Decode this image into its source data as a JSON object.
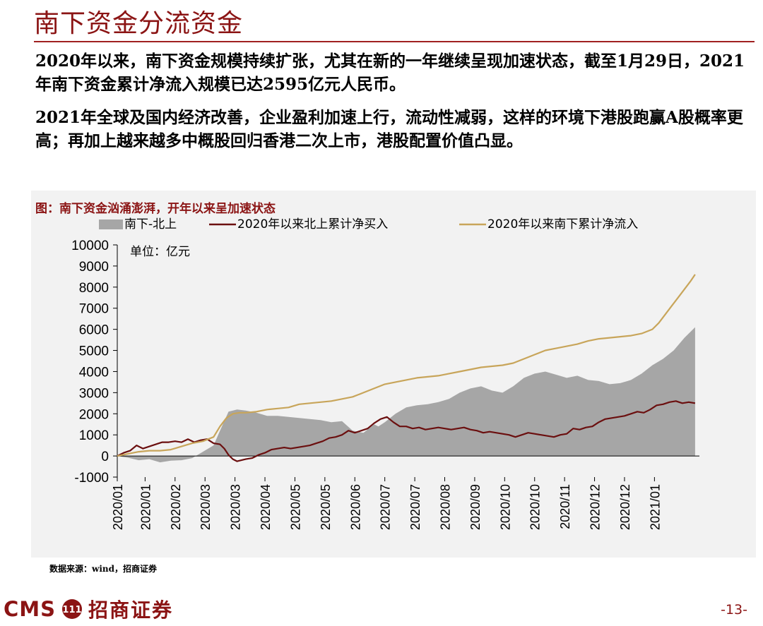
{
  "page": {
    "title": "南下资金分流资金",
    "paragraphs": [
      "2020年以来，南下资金规模持续扩张，尤其在新的一年继续呈现加速状态，截至1月29日，2021年南下资金累计净流入规模已达2595亿元人民币。",
      "2021年全球及国内经济改善，企业盈利加速上行，流动性减弱，这样的环境下港股跑赢A股概率更高；再加上越来越多中概股回归香港二次上市，港股配置价值凸显。"
    ],
    "source": "数据来源：wind，招商证券",
    "footer": {
      "brand": "CMS",
      "logo_text": "111",
      "company": "招商证券",
      "page_number": "-13-"
    }
  },
  "colors": {
    "title": "#8b1414",
    "area": "#a6a6a6",
    "north_line": "#6b0f0f",
    "south_line": "#c8a55a",
    "chart_bg": "#f2f2f2"
  },
  "chart_data": {
    "type": "line",
    "title": "图：南下资金汹涌澎湃，开年以来呈加速状态",
    "unit_label": "单位：亿元",
    "ylim": [
      -1000,
      10000
    ],
    "yticks": [
      10000,
      9000,
      8000,
      7000,
      6000,
      5000,
      4000,
      3000,
      2000,
      1000,
      0,
      -1000
    ],
    "xlim": [
      0,
      272
    ],
    "xtick_positions": [
      0,
      13,
      27,
      41,
      55,
      69,
      83,
      97,
      111,
      125,
      139,
      153,
      167,
      181,
      195,
      209,
      223,
      237,
      251
    ],
    "xtick_labels": [
      "2020/01",
      "2020/01",
      "2020/02",
      "2020/03",
      "2020/03",
      "2020/04",
      "2020/05",
      "2020/05",
      "2020/06",
      "2020/07",
      "2020/07",
      "2020/08",
      "2020/09",
      "2020/10",
      "2020/10",
      "2020/11",
      "2020/12",
      "2020/12",
      "2021/01"
    ],
    "series": [
      {
        "name": "南下-北上",
        "type": "area",
        "x": [
          0,
          5,
          10,
          15,
          20,
          25,
          30,
          35,
          40,
          45,
          48,
          52,
          56,
          60,
          65,
          70,
          75,
          80,
          85,
          90,
          95,
          100,
          105,
          110,
          115,
          120,
          122,
          125,
          130,
          135,
          140,
          145,
          150,
          155,
          160,
          165,
          170,
          175,
          180,
          185,
          190,
          195,
          200,
          205,
          210,
          215,
          220,
          225,
          230,
          235,
          240,
          245,
          250,
          255,
          260,
          265,
          268,
          270
        ],
        "values": [
          0,
          -80,
          -200,
          -150,
          -300,
          -220,
          -200,
          -100,
          200,
          500,
          1200,
          2100,
          2200,
          2150,
          2050,
          1900,
          1900,
          1850,
          1800,
          1750,
          1700,
          1600,
          1650,
          1200,
          1100,
          1500,
          1400,
          1600,
          2000,
          2300,
          2400,
          2450,
          2550,
          2700,
          3000,
          3200,
          3300,
          3100,
          3000,
          3300,
          3700,
          3900,
          4000,
          3850,
          3700,
          3800,
          3600,
          3550,
          3400,
          3450,
          3600,
          3900,
          4300,
          4600,
          5000,
          5600,
          5900,
          6100
        ]
      },
      {
        "name": "2020年以来北上累计净买入",
        "type": "line",
        "x": [
          0,
          3,
          6,
          9,
          12,
          15,
          18,
          21,
          24,
          27,
          30,
          33,
          36,
          39,
          42,
          45,
          48,
          50,
          52,
          54,
          56,
          58,
          60,
          63,
          66,
          69,
          72,
          75,
          78,
          81,
          84,
          87,
          90,
          93,
          96,
          99,
          102,
          105,
          108,
          111,
          114,
          117,
          120,
          123,
          126,
          129,
          132,
          135,
          138,
          141,
          144,
          147,
          150,
          153,
          156,
          159,
          162,
          165,
          168,
          171,
          174,
          177,
          180,
          183,
          186,
          189,
          192,
          195,
          198,
          201,
          204,
          207,
          210,
          213,
          216,
          219,
          222,
          225,
          228,
          231,
          234,
          237,
          240,
          243,
          246,
          249,
          252,
          255,
          258,
          261,
          264,
          267,
          270
        ],
        "values": [
          0,
          150,
          250,
          500,
          350,
          450,
          550,
          650,
          650,
          700,
          650,
          800,
          650,
          750,
          800,
          600,
          550,
          350,
          50,
          -150,
          -250,
          -200,
          -150,
          -100,
          50,
          150,
          300,
          350,
          400,
          350,
          400,
          450,
          500,
          600,
          700,
          850,
          900,
          1000,
          1200,
          1100,
          1200,
          1300,
          1550,
          1750,
          1850,
          1600,
          1400,
          1400,
          1300,
          1350,
          1250,
          1300,
          1350,
          1300,
          1250,
          1300,
          1350,
          1250,
          1200,
          1100,
          1150,
          1100,
          1050,
          1000,
          900,
          1000,
          1100,
          1050,
          1000,
          950,
          900,
          1000,
          1050,
          1300,
          1250,
          1350,
          1400,
          1600,
          1750,
          1800,
          1850,
          1900,
          2000,
          2100,
          2050,
          2200,
          2400,
          2450,
          2550,
          2600,
          2500,
          2550,
          2500
        ]
      },
      {
        "name": "2020年以来南下累计净流入",
        "type": "line",
        "x": [
          0,
          5,
          10,
          15,
          20,
          25,
          30,
          35,
          40,
          45,
          48,
          51,
          54,
          57,
          60,
          65,
          70,
          75,
          80,
          85,
          90,
          95,
          100,
          105,
          110,
          115,
          120,
          125,
          130,
          135,
          140,
          145,
          150,
          155,
          160,
          165,
          170,
          175,
          180,
          185,
          190,
          195,
          200,
          205,
          210,
          215,
          220,
          225,
          230,
          235,
          240,
          245,
          250,
          253,
          256,
          259,
          262,
          265,
          268,
          270
        ],
        "values": [
          0,
          100,
          200,
          250,
          250,
          300,
          450,
          600,
          700,
          900,
          1400,
          1800,
          2000,
          2050,
          2050,
          2100,
          2200,
          2250,
          2300,
          2450,
          2500,
          2550,
          2600,
          2700,
          2800,
          3000,
          3200,
          3400,
          3500,
          3600,
          3700,
          3750,
          3800,
          3900,
          4000,
          4100,
          4200,
          4250,
          4300,
          4400,
          4600,
          4800,
          5000,
          5100,
          5200,
          5300,
          5450,
          5550,
          5600,
          5650,
          5700,
          5800,
          6000,
          6300,
          6700,
          7100,
          7500,
          7900,
          8300,
          8600
        ]
      }
    ]
  }
}
